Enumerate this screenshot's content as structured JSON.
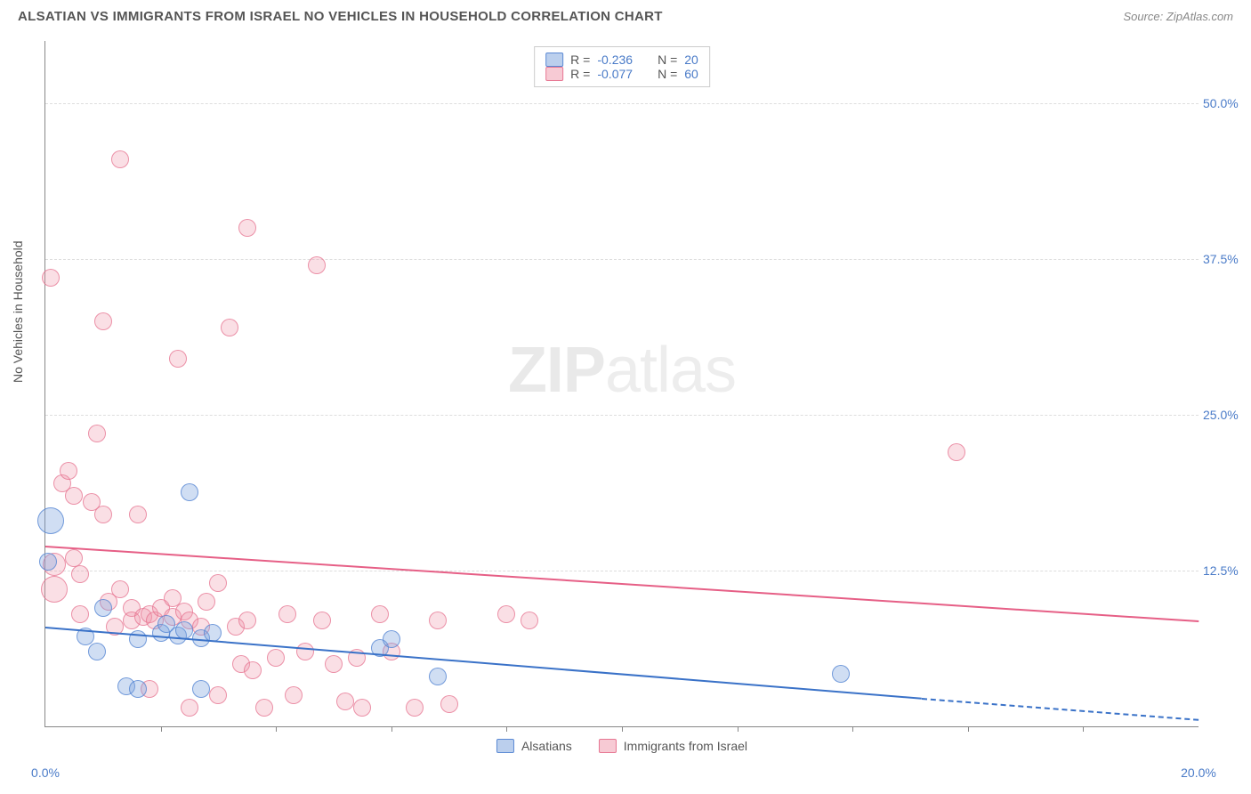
{
  "title": "ALSATIAN VS IMMIGRANTS FROM ISRAEL NO VEHICLES IN HOUSEHOLD CORRELATION CHART",
  "source": "Source: ZipAtlas.com",
  "y_axis_label": "No Vehicles in Household",
  "watermark_bold": "ZIP",
  "watermark_light": "atlas",
  "chart": {
    "type": "scatter",
    "x_range": [
      0,
      20
    ],
    "y_range": [
      0,
      55
    ],
    "y_ticks": [
      {
        "value": 12.5,
        "label": "12.5%"
      },
      {
        "value": 25.0,
        "label": "25.0%"
      },
      {
        "value": 37.5,
        "label": "37.5%"
      },
      {
        "value": 50.0,
        "label": "50.0%"
      }
    ],
    "x_ticks_minor": [
      2,
      4,
      6,
      8,
      10,
      12,
      14,
      16,
      18
    ],
    "x_labels": [
      {
        "value": 0,
        "label": "0.0%"
      },
      {
        "value": 20,
        "label": "20.0%"
      }
    ],
    "grid_color": "#dddddd",
    "axis_color": "#888888",
    "background_color": "#ffffff",
    "marker_radius": 9,
    "colors": {
      "blue_fill": "rgba(120,160,220,0.35)",
      "blue_stroke": "rgba(80,130,210,0.75)",
      "pink_fill": "rgba(240,150,170,0.3)",
      "pink_stroke": "rgba(230,110,140,0.7)",
      "trend_blue": "#3a72c8",
      "trend_pink": "#e65f86",
      "tick_label": "#4a7bc8"
    },
    "series_blue": {
      "name": "Alsatians",
      "R": "-0.236",
      "N": "20",
      "trend": {
        "x1": 0,
        "y1": 8.0,
        "x2": 15.2,
        "y2": 2.3,
        "dash_from_x": 15.2,
        "x2_dash": 20,
        "y2_dash": 0.6
      },
      "points": [
        {
          "x": 0.1,
          "y": 16.5,
          "r": 14
        },
        {
          "x": 0.05,
          "y": 13.2,
          "r": 9
        },
        {
          "x": 0.7,
          "y": 7.2,
          "r": 9
        },
        {
          "x": 0.9,
          "y": 6.0,
          "r": 9
        },
        {
          "x": 1.0,
          "y": 9.5,
          "r": 9
        },
        {
          "x": 1.4,
          "y": 3.2,
          "r": 9
        },
        {
          "x": 1.6,
          "y": 7.0,
          "r": 9
        },
        {
          "x": 1.6,
          "y": 3.0,
          "r": 9
        },
        {
          "x": 2.0,
          "y": 7.5,
          "r": 9
        },
        {
          "x": 2.1,
          "y": 8.2,
          "r": 9
        },
        {
          "x": 2.3,
          "y": 7.3,
          "r": 9
        },
        {
          "x": 2.4,
          "y": 7.7,
          "r": 9
        },
        {
          "x": 2.5,
          "y": 18.8,
          "r": 9
        },
        {
          "x": 2.7,
          "y": 7.1,
          "r": 9
        },
        {
          "x": 2.7,
          "y": 3.0,
          "r": 9
        },
        {
          "x": 2.9,
          "y": 7.5,
          "r": 9
        },
        {
          "x": 5.8,
          "y": 6.3,
          "r": 9
        },
        {
          "x": 6.0,
          "y": 7.0,
          "r": 9
        },
        {
          "x": 6.8,
          "y": 4.0,
          "r": 9
        },
        {
          "x": 13.8,
          "y": 4.2,
          "r": 9
        }
      ]
    },
    "series_pink": {
      "name": "Immigrants from Israel",
      "R": "-0.077",
      "N": "60",
      "trend": {
        "x1": 0,
        "y1": 14.5,
        "x2": 20,
        "y2": 8.5
      },
      "points": [
        {
          "x": 0.1,
          "y": 36.0,
          "r": 9
        },
        {
          "x": 0.15,
          "y": 13.0,
          "r": 12
        },
        {
          "x": 0.15,
          "y": 11.0,
          "r": 14
        },
        {
          "x": 0.3,
          "y": 19.5,
          "r": 9
        },
        {
          "x": 0.4,
          "y": 20.5,
          "r": 9
        },
        {
          "x": 0.5,
          "y": 18.5,
          "r": 9
        },
        {
          "x": 0.5,
          "y": 13.5,
          "r": 9
        },
        {
          "x": 0.6,
          "y": 12.2,
          "r": 9
        },
        {
          "x": 0.6,
          "y": 9.0,
          "r": 9
        },
        {
          "x": 0.8,
          "y": 18.0,
          "r": 9
        },
        {
          "x": 0.9,
          "y": 23.5,
          "r": 9
        },
        {
          "x": 1.0,
          "y": 32.5,
          "r": 9
        },
        {
          "x": 1.0,
          "y": 17.0,
          "r": 9
        },
        {
          "x": 1.1,
          "y": 10.0,
          "r": 9
        },
        {
          "x": 1.2,
          "y": 8.0,
          "r": 9
        },
        {
          "x": 1.3,
          "y": 45.5,
          "r": 9
        },
        {
          "x": 1.3,
          "y": 11.0,
          "r": 9
        },
        {
          "x": 1.5,
          "y": 9.5,
          "r": 9
        },
        {
          "x": 1.5,
          "y": 8.5,
          "r": 9
        },
        {
          "x": 1.6,
          "y": 17.0,
          "r": 9
        },
        {
          "x": 1.7,
          "y": 8.8,
          "r": 9
        },
        {
          "x": 1.8,
          "y": 9.0,
          "r": 9
        },
        {
          "x": 1.8,
          "y": 3.0,
          "r": 9
        },
        {
          "x": 1.9,
          "y": 8.5,
          "r": 9
        },
        {
          "x": 2.0,
          "y": 9.5,
          "r": 9
        },
        {
          "x": 2.2,
          "y": 10.3,
          "r": 9
        },
        {
          "x": 2.2,
          "y": 8.8,
          "r": 9
        },
        {
          "x": 2.3,
          "y": 29.5,
          "r": 9
        },
        {
          "x": 2.4,
          "y": 9.2,
          "r": 9
        },
        {
          "x": 2.5,
          "y": 8.5,
          "r": 9
        },
        {
          "x": 2.5,
          "y": 1.5,
          "r": 9
        },
        {
          "x": 2.7,
          "y": 8.0,
          "r": 9
        },
        {
          "x": 2.8,
          "y": 10.0,
          "r": 9
        },
        {
          "x": 3.0,
          "y": 11.5,
          "r": 9
        },
        {
          "x": 3.0,
          "y": 2.5,
          "r": 9
        },
        {
          "x": 3.2,
          "y": 32.0,
          "r": 9
        },
        {
          "x": 3.3,
          "y": 8.0,
          "r": 9
        },
        {
          "x": 3.4,
          "y": 5.0,
          "r": 9
        },
        {
          "x": 3.5,
          "y": 40.0,
          "r": 9
        },
        {
          "x": 3.5,
          "y": 8.5,
          "r": 9
        },
        {
          "x": 3.6,
          "y": 4.5,
          "r": 9
        },
        {
          "x": 3.8,
          "y": 1.5,
          "r": 9
        },
        {
          "x": 4.0,
          "y": 5.5,
          "r": 9
        },
        {
          "x": 4.2,
          "y": 9.0,
          "r": 9
        },
        {
          "x": 4.3,
          "y": 2.5,
          "r": 9
        },
        {
          "x": 4.5,
          "y": 6.0,
          "r": 9
        },
        {
          "x": 4.7,
          "y": 37.0,
          "r": 9
        },
        {
          "x": 4.8,
          "y": 8.5,
          "r": 9
        },
        {
          "x": 5.0,
          "y": 5.0,
          "r": 9
        },
        {
          "x": 5.2,
          "y": 2.0,
          "r": 9
        },
        {
          "x": 5.4,
          "y": 5.5,
          "r": 9
        },
        {
          "x": 5.5,
          "y": 1.5,
          "r": 9
        },
        {
          "x": 5.8,
          "y": 9.0,
          "r": 9
        },
        {
          "x": 6.0,
          "y": 6.0,
          "r": 9
        },
        {
          "x": 6.4,
          "y": 1.5,
          "r": 9
        },
        {
          "x": 6.8,
          "y": 8.5,
          "r": 9
        },
        {
          "x": 7.0,
          "y": 1.8,
          "r": 9
        },
        {
          "x": 8.0,
          "y": 9.0,
          "r": 9
        },
        {
          "x": 8.4,
          "y": 8.5,
          "r": 9
        },
        {
          "x": 15.8,
          "y": 22.0,
          "r": 9
        }
      ]
    }
  },
  "legend_top": {
    "rows": [
      {
        "swatch": "blue",
        "r_label": "R =",
        "r_val": "-0.236",
        "n_label": "N =",
        "n_val": "20"
      },
      {
        "swatch": "pink",
        "r_label": "R =",
        "r_val": "-0.077",
        "n_label": "N =",
        "n_val": "60"
      }
    ]
  },
  "legend_bottom": {
    "items": [
      {
        "swatch": "blue",
        "label": "Alsatians"
      },
      {
        "swatch": "pink",
        "label": "Immigrants from Israel"
      }
    ]
  }
}
